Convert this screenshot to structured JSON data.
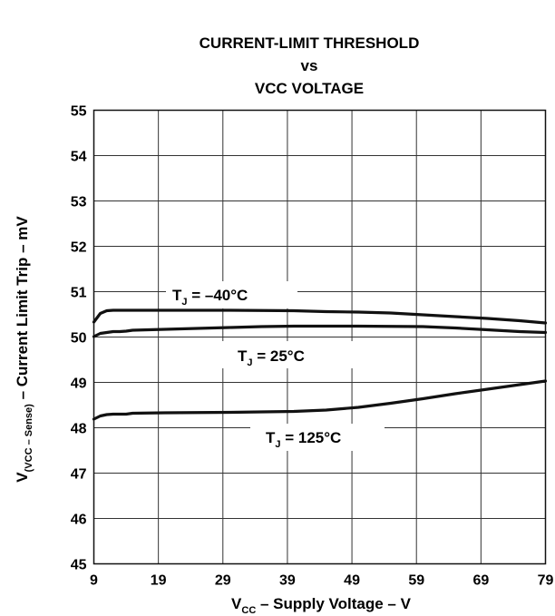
{
  "chart_data": {
    "type": "line",
    "title_lines": [
      "CURRENT-LIMIT THRESHOLD",
      "vs",
      "VCC VOLTAGE"
    ],
    "xlabel": {
      "main": "V",
      "sub": "CC",
      "rest": " – Supply Voltage – V"
    },
    "ylabel": {
      "main": "V",
      "sub": "(VCC – Sense)",
      "rest": " – Current Limit Trip – mV"
    },
    "xlim": [
      9,
      79
    ],
    "ylim": [
      45,
      55
    ],
    "xticks": [
      9,
      19,
      29,
      39,
      49,
      59,
      69,
      79
    ],
    "yticks": [
      45,
      46,
      47,
      48,
      49,
      50,
      51,
      52,
      53,
      54,
      55
    ],
    "grid": true,
    "series": [
      {
        "label": {
          "main": "T",
          "sub": "J",
          "rest": " = –40°C"
        },
        "x": [
          9,
          10,
          11,
          12,
          15,
          20,
          30,
          40,
          45,
          50,
          55,
          60,
          65,
          70,
          75,
          79
        ],
        "y": [
          50.33,
          50.52,
          50.58,
          50.59,
          50.59,
          50.59,
          50.59,
          50.58,
          50.56,
          50.55,
          50.53,
          50.49,
          50.45,
          50.41,
          50.36,
          50.31
        ]
      },
      {
        "label": {
          "main": "T",
          "sub": "J",
          "rest": " = 25°C"
        },
        "x": [
          9,
          10,
          11,
          12,
          13,
          14,
          15,
          20,
          25,
          30,
          35,
          40,
          50,
          60,
          65,
          70,
          75,
          79
        ],
        "y": [
          50.01,
          50.08,
          50.1,
          50.12,
          50.12,
          50.13,
          50.15,
          50.17,
          50.19,
          50.21,
          50.23,
          50.24,
          50.24,
          50.23,
          50.2,
          50.16,
          50.12,
          50.1
        ]
      },
      {
        "label": {
          "main": "T",
          "sub": "J",
          "rest": " = 125°C"
        },
        "x": [
          9,
          10,
          11,
          12,
          14,
          15,
          20,
          30,
          40,
          45,
          50,
          55,
          60,
          65,
          70,
          75,
          79
        ],
        "y": [
          48.19,
          48.26,
          48.29,
          48.3,
          48.3,
          48.32,
          48.33,
          48.34,
          48.36,
          48.39,
          48.45,
          48.54,
          48.64,
          48.75,
          48.85,
          48.95,
          49.03
        ]
      }
    ]
  }
}
